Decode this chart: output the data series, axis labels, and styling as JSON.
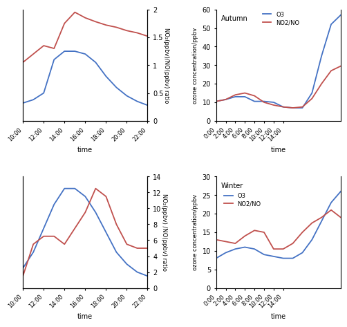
{
  "top_left": {
    "xlabel": "time",
    "ylabel_right": "NO₂(ppbv)/NO(ppbv) ratio",
    "x_ticks": [
      "10:00",
      "12:00",
      "14:00",
      "16:00",
      "18:00",
      "20:00",
      "22:00"
    ],
    "ylim_left": [
      0,
      2
    ],
    "ylim_right": [
      0,
      2
    ],
    "blue_line": [
      0.32,
      0.38,
      0.5,
      1.1,
      1.25,
      1.25,
      1.2,
      1.05,
      0.8,
      0.6,
      0.45,
      0.35,
      0.28
    ],
    "red_line": [
      1.05,
      1.2,
      1.35,
      1.3,
      1.75,
      1.95,
      1.85,
      1.78,
      1.72,
      1.68,
      1.62,
      1.58,
      1.52
    ],
    "x_num": [
      0,
      1,
      2,
      3,
      4,
      5,
      6,
      7,
      8,
      9,
      10,
      11,
      12
    ],
    "x_tick_pos": [
      0,
      2,
      4,
      6,
      8,
      10,
      12
    ],
    "yticks_right": [
      0,
      0.5,
      1,
      1.5,
      2
    ],
    "ytick_labels_right": [
      "0",
      "0.5",
      "1",
      "1.5",
      "2"
    ]
  },
  "top_right": {
    "title": "Autumn",
    "xlabel": "time",
    "ylabel": "ozone concentration/ppbv",
    "legend_O3": "O3",
    "legend_NO2NO": "NO2/NO",
    "x_ticks": [
      "0:00",
      "2:00",
      "4:00",
      "6:00",
      "8:00",
      "10:00",
      "12:00",
      "14:00"
    ],
    "ylim": [
      0,
      60
    ],
    "yticks": [
      0,
      10,
      20,
      30,
      40,
      50,
      60
    ],
    "ytick_labels": [
      "0",
      "10",
      "20",
      "30",
      "40",
      "50",
      "60"
    ],
    "blue_line": [
      10.5,
      11.5,
      13.0,
      13.0,
      10.5,
      10.5,
      10.0,
      7.5,
      7.0,
      7.0,
      15.0,
      35.0,
      52.0,
      57.0
    ],
    "red_line": [
      10.5,
      11.5,
      14.0,
      15.0,
      13.5,
      10.0,
      8.5,
      7.5,
      7.0,
      7.5,
      12.0,
      20.0,
      27.0,
      29.5
    ],
    "x_num": [
      0,
      1,
      2,
      3,
      4,
      5,
      6,
      7,
      8,
      9,
      10,
      11,
      12,
      13
    ],
    "x_tick_pos": [
      0,
      1,
      2,
      3,
      4,
      5,
      6,
      7
    ]
  },
  "bottom_left": {
    "xlabel": "time",
    "ylabel_right": "NO₂(ppbv) /NO(ppbv) ratio",
    "x_ticks": [
      "10:00",
      "12:00",
      "14:00",
      "16:00",
      "18:00",
      "20:00",
      "22:00"
    ],
    "ylim_left": [
      0,
      14
    ],
    "ylim_right": [
      0,
      14
    ],
    "blue_line": [
      2.5,
      4.5,
      7.5,
      10.5,
      12.5,
      12.5,
      11.5,
      9.5,
      7.0,
      4.5,
      3.0,
      2.0,
      1.5
    ],
    "red_line": [
      1.5,
      5.5,
      6.5,
      6.5,
      5.5,
      7.5,
      9.5,
      12.5,
      11.5,
      8.0,
      5.5,
      5.0,
      5.0
    ],
    "x_num": [
      0,
      1,
      2,
      3,
      4,
      5,
      6,
      7,
      8,
      9,
      10,
      11,
      12
    ],
    "x_tick_pos": [
      0,
      2,
      4,
      6,
      8,
      10,
      12
    ],
    "yticks_right": [
      0,
      2,
      4,
      6,
      8,
      10,
      12,
      14
    ],
    "ytick_labels_right": [
      "0",
      "2",
      "4",
      "6",
      "8",
      "10",
      "12",
      "14"
    ]
  },
  "bottom_right": {
    "title": "Winter",
    "xlabel": "time",
    "ylabel": "ozone concentration/ppbv",
    "legend_O3": "O3",
    "legend_NO2NO": "NO2/NO",
    "x_ticks": [
      "0:00",
      "2:00",
      "4:00",
      "6:00",
      "8:00",
      "10:00",
      "12:00",
      "14:00"
    ],
    "ylim": [
      0,
      30
    ],
    "yticks": [
      0,
      5,
      10,
      15,
      20,
      25,
      30
    ],
    "ytick_labels": [
      "0",
      "5",
      "10",
      "15",
      "20",
      "25",
      "30"
    ],
    "blue_line": [
      8.0,
      9.5,
      10.5,
      11.0,
      10.5,
      9.0,
      8.5,
      8.0,
      8.0,
      9.5,
      13.0,
      18.0,
      23.0,
      26.0
    ],
    "red_line": [
      13.0,
      12.5,
      12.0,
      14.0,
      15.5,
      15.0,
      10.5,
      10.5,
      12.0,
      15.0,
      17.5,
      19.0,
      21.0,
      19.0
    ],
    "x_num": [
      0,
      1,
      2,
      3,
      4,
      5,
      6,
      7,
      8,
      9,
      10,
      11,
      12,
      13
    ],
    "x_tick_pos": [
      0,
      1,
      2,
      3,
      4,
      5,
      6,
      7
    ]
  },
  "blue_color": "#4472C4",
  "red_color": "#C0504D",
  "bg_color": "#FFFFFF",
  "font_size": 7,
  "line_width": 1.3
}
